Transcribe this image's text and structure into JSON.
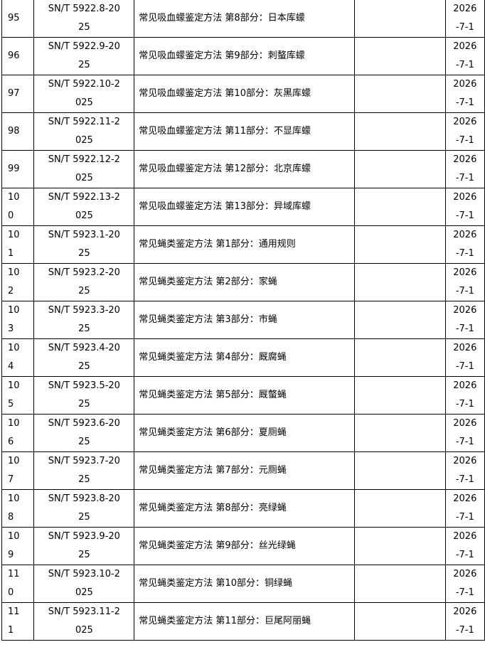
{
  "rows": [
    {
      "no": [
        "95"
      ],
      "code": [
        "SN/T 5922.8-20",
        "25"
      ],
      "title": "常见吸血蠓鉴定方法 第8部分：日本库蠓",
      "note": "",
      "date": [
        "2026",
        "-7-1"
      ]
    },
    {
      "no": [
        "96"
      ],
      "code": [
        "SN/T 5922.9-20",
        "25"
      ],
      "title": "常见吸血蠓鉴定方法 第9部分：刺螯库蠓",
      "note": "",
      "date": [
        "2026",
        "-7-1"
      ]
    },
    {
      "no": [
        "97"
      ],
      "code": [
        "SN/T 5922.10-2",
        "025"
      ],
      "title": "常见吸血蠓鉴定方法 第10部分：灰黑库蠓",
      "note": "",
      "date": [
        "2026",
        "-7-1"
      ]
    },
    {
      "no": [
        "98"
      ],
      "code": [
        "SN/T 5922.11-2",
        "025"
      ],
      "title": "常见吸血蠓鉴定方法 第11部分：不显库蠓",
      "note": "",
      "date": [
        "2026",
        "-7-1"
      ]
    },
    {
      "no": [
        "99"
      ],
      "code": [
        "SN/T 5922.12-2",
        "025"
      ],
      "title": "常见吸血蠓鉴定方法 第12部分：北京库蠓",
      "note": "",
      "date": [
        "2026",
        "-7-1"
      ]
    },
    {
      "no": [
        "10",
        "0"
      ],
      "code": [
        "SN/T 5922.13-2",
        "025"
      ],
      "title": "常见吸血蠓鉴定方法 第13部分：异域库蠓",
      "note": "",
      "date": [
        "2026",
        "-7-1"
      ]
    },
    {
      "no": [
        "10",
        "1"
      ],
      "code": [
        "SN/T 5923.1-20",
        "25"
      ],
      "title": "常见蝇类鉴定方法 第1部分：通用规则",
      "note": "",
      "date": [
        "2026",
        "-7-1"
      ]
    },
    {
      "no": [
        "10",
        "2"
      ],
      "code": [
        "SN/T 5923.2-20",
        "25"
      ],
      "title": "常见蝇类鉴定方法 第2部分：家蝇",
      "note": "",
      "date": [
        "2026",
        "-7-1"
      ]
    },
    {
      "no": [
        "10",
        "3"
      ],
      "code": [
        "SN/T 5923.3-20",
        "25"
      ],
      "title": "常见蝇类鉴定方法 第3部分：市蝇",
      "note": "",
      "date": [
        "2026",
        "-7-1"
      ]
    },
    {
      "no": [
        "10",
        "4"
      ],
      "code": [
        "SN/T 5923.4-20",
        "25"
      ],
      "title": "常见蝇类鉴定方法 第4部分：厩腐蝇",
      "note": "",
      "date": [
        "2026",
        "-7-1"
      ]
    },
    {
      "no": [
        "10",
        "5"
      ],
      "code": [
        "SN/T 5923.5-20",
        "25"
      ],
      "title": "常见蝇类鉴定方法 第5部分：厩螫蝇",
      "note": "",
      "date": [
        "2026",
        "-7-1"
      ]
    },
    {
      "no": [
        "10",
        "6"
      ],
      "code": [
        "SN/T 5923.6-20",
        "25"
      ],
      "title": "常见蝇类鉴定方法 第6部分：夏厕蝇",
      "note": "",
      "date": [
        "2026",
        "-7-1"
      ]
    },
    {
      "no": [
        "10",
        "7"
      ],
      "code": [
        "SN/T 5923.7-20",
        "25"
      ],
      "title": "常见蝇类鉴定方法 第7部分：元厕蝇",
      "note": "",
      "date": [
        "2026",
        "-7-1"
      ]
    },
    {
      "no": [
        "10",
        "8"
      ],
      "code": [
        "SN/T 5923.8-20",
        "25"
      ],
      "title": "常见蝇类鉴定方法 第8部分：亮绿蝇",
      "note": "",
      "date": [
        "2026",
        "-7-1"
      ]
    },
    {
      "no": [
        "10",
        "9"
      ],
      "code": [
        "SN/T 5923.9-20",
        "25"
      ],
      "title": "常见蝇类鉴定方法 第9部分：丝光绿蝇",
      "note": "",
      "date": [
        "2026",
        "-7-1"
      ]
    },
    {
      "no": [
        "11",
        "0"
      ],
      "code": [
        "SN/T 5923.10-2",
        "025"
      ],
      "title": "常见蝇类鉴定方法 第10部分：铜绿蝇",
      "note": "",
      "date": [
        "2026",
        "-7-1"
      ]
    },
    {
      "no": [
        "11",
        "1"
      ],
      "code": [
        "SN/T 5923.11-2",
        "025"
      ],
      "title": "常见蝇类鉴定方法 第11部分：巨尾阿丽蝇",
      "note": "",
      "date": [
        "2026",
        "-7-1"
      ]
    }
  ]
}
